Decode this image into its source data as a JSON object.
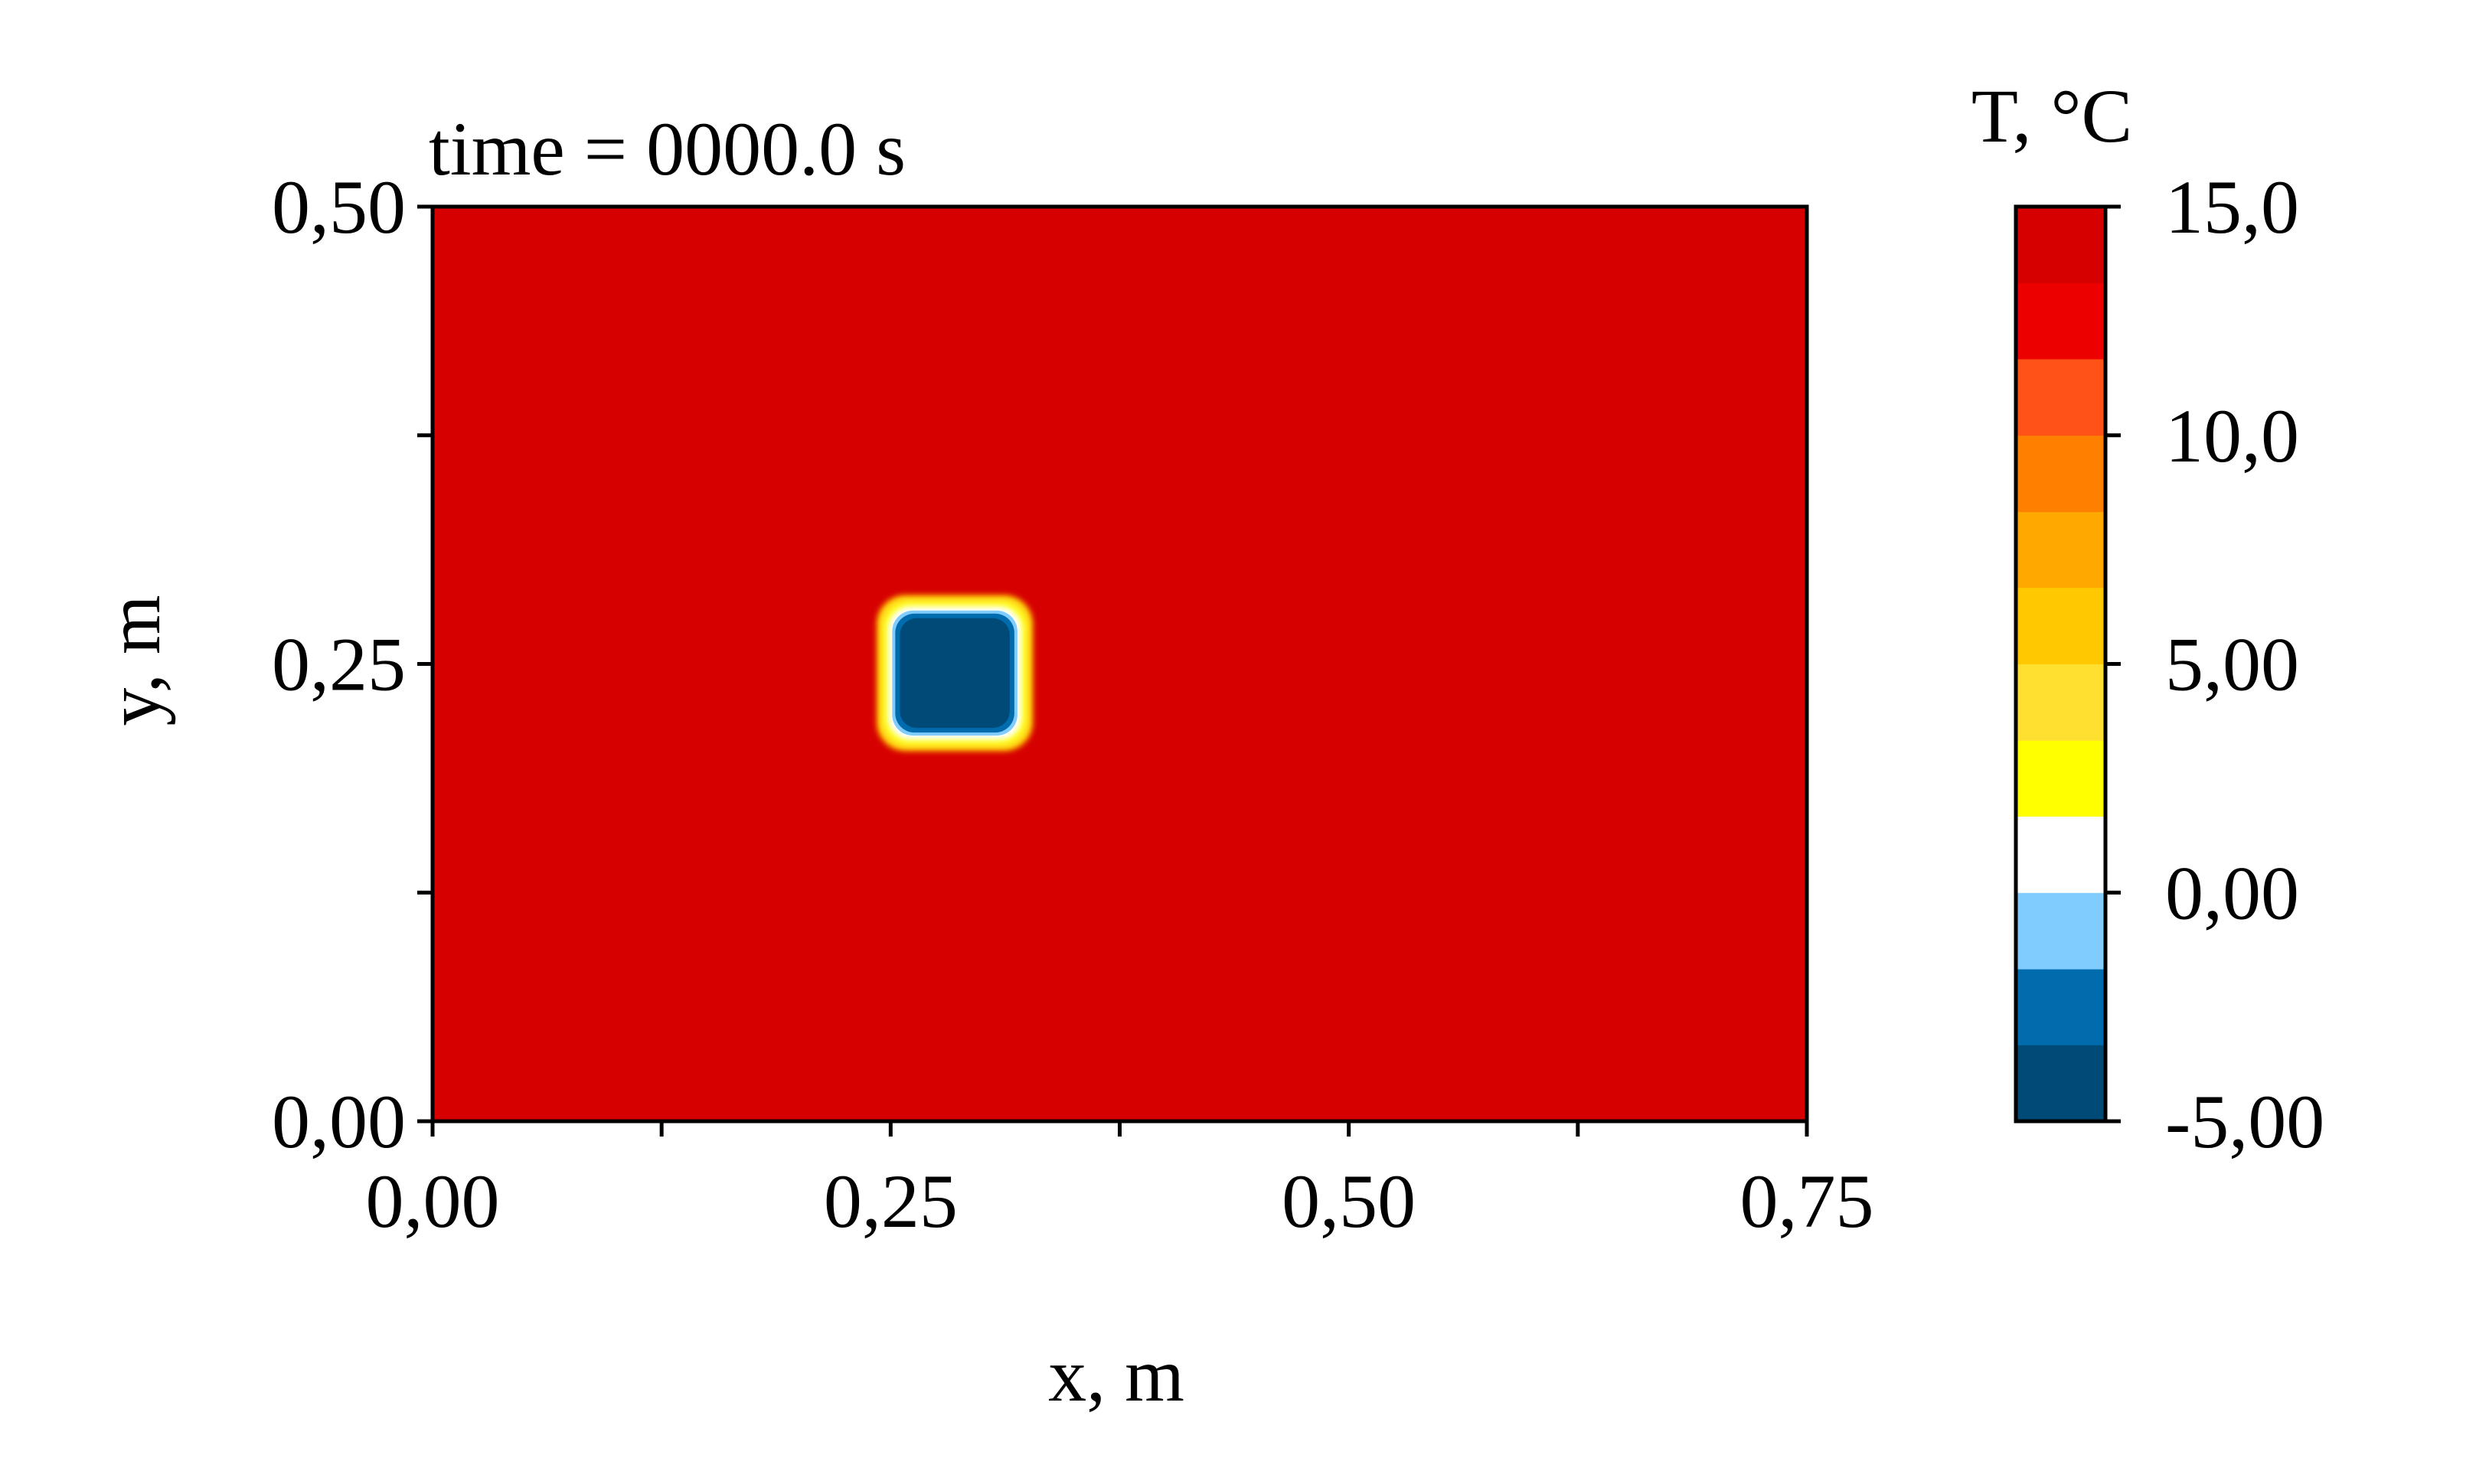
{
  "chart_data": {
    "type": "heatmap",
    "title": "time = 0000.0 s",
    "xlabel": "x, m",
    "ylabel": "y, m",
    "xlim": [
      0,
      0.75
    ],
    "ylim": [
      0,
      0.5
    ],
    "x_ticks": [
      {
        "value": 0.0,
        "label": "0,00"
      },
      {
        "value": 0.25,
        "label": "0,25"
      },
      {
        "value": 0.5,
        "label": "0,50"
      },
      {
        "value": 0.75,
        "label": "0,75"
      }
    ],
    "x_minor_ticks": [
      0.125,
      0.375,
      0.625
    ],
    "y_ticks": [
      {
        "value": 0.0,
        "label": "0,00"
      },
      {
        "value": 0.25,
        "label": "0,25"
      },
      {
        "value": 0.5,
        "label": "0,50"
      }
    ],
    "y_minor_ticks": [
      0.125,
      0.375
    ],
    "background_value": 15.0,
    "cold_region": {
      "x_range": [
        0.25,
        0.32
      ],
      "y_range": [
        0.21,
        0.28
      ],
      "value": -5.0
    },
    "colorbar": {
      "title": "T, °C",
      "range": [
        -5.0,
        15.0
      ],
      "ticks": [
        {
          "value": 15.0,
          "label": "15,0"
        },
        {
          "value": 10.0,
          "label": "10,0"
        },
        {
          "value": 5.0,
          "label": "5,00"
        },
        {
          "value": 0.0,
          "label": "0,00"
        },
        {
          "value": -5.0,
          "label": "-5,00"
        }
      ],
      "levels": [
        {
          "from": -5.0,
          "to": -3.33,
          "color": "#004a78"
        },
        {
          "from": -3.33,
          "to": -1.67,
          "color": "#006bad"
        },
        {
          "from": -1.67,
          "to": 0.0,
          "color": "#80ccff"
        },
        {
          "from": 0.0,
          "to": 1.67,
          "color": "#ffffff"
        },
        {
          "from": 1.67,
          "to": 3.33,
          "color": "#ffff00"
        },
        {
          "from": 3.33,
          "to": 5.0,
          "color": "#ffe030"
        },
        {
          "from": 5.0,
          "to": 6.67,
          "color": "#ffc800"
        },
        {
          "from": 6.67,
          "to": 8.33,
          "color": "#ffa800"
        },
        {
          "from": 8.33,
          "to": 10.0,
          "color": "#ff8000"
        },
        {
          "from": 10.0,
          "to": 11.67,
          "color": "#ff5218"
        },
        {
          "from": 11.67,
          "to": 13.33,
          "color": "#ec0000"
        },
        {
          "from": 13.33,
          "to": 15.0,
          "color": "#d60000"
        }
      ]
    }
  }
}
